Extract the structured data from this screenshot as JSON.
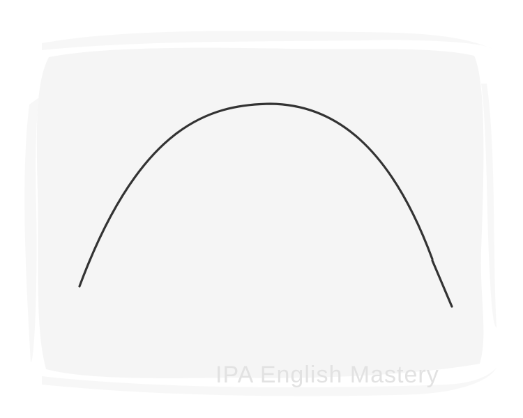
{
  "illustration": {
    "subject": "arc-curve",
    "colors": {
      "canvas_background": "#ffffff",
      "panel_fill": "#f5f5f5",
      "stroke": "#333333"
    }
  },
  "watermark": {
    "text": "IPA English Mastery",
    "color": "#e2e2e2"
  }
}
